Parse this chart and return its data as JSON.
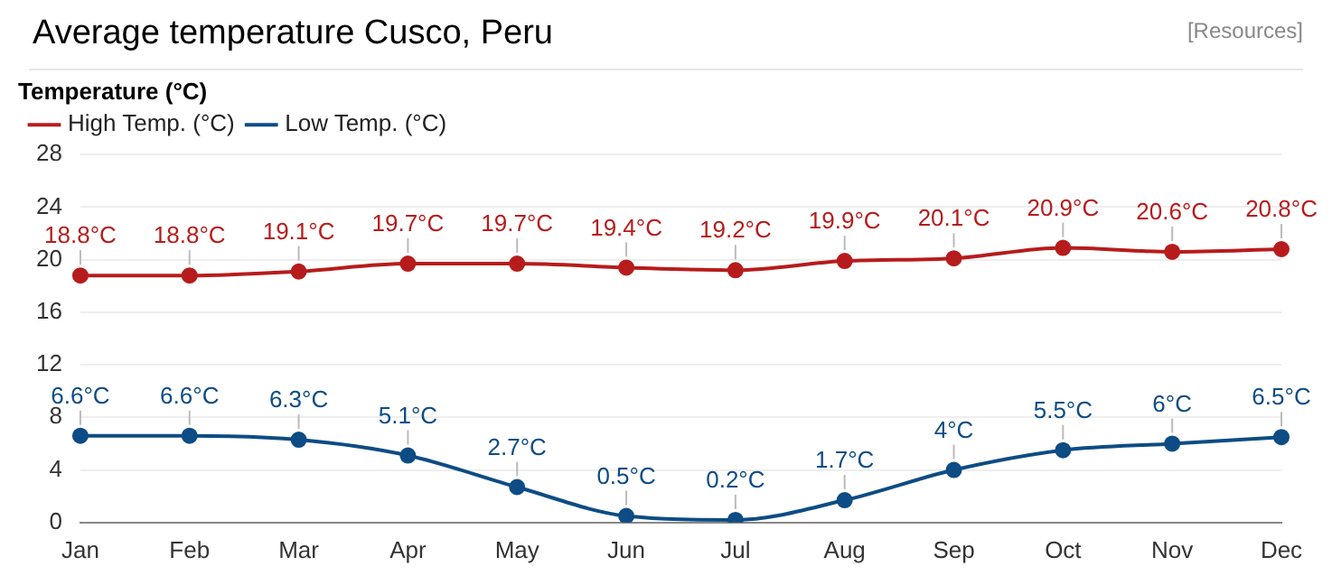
{
  "chart_data": {
    "type": "line",
    "title": "Average temperature Cusco, Peru",
    "annotations": [
      "[Resources]"
    ],
    "legend_title": "Temperature (°C)",
    "legend": "top left",
    "marker": "circle",
    "line_style": "solid",
    "grid": "y",
    "categories": [
      "Jan",
      "Feb",
      "Mar",
      "Apr",
      "May",
      "Jun",
      "Jul",
      "Aug",
      "Sep",
      "Oct",
      "Nov",
      "Dec"
    ],
    "ylim": [
      0,
      28
    ],
    "yticks": [
      0,
      4,
      8,
      12,
      16,
      20,
      24,
      28
    ],
    "series": [
      {
        "name": "High Temp. (°C)",
        "color": "#b71c1c",
        "values": [
          18.8,
          18.8,
          19.1,
          19.7,
          19.7,
          19.4,
          19.2,
          19.9,
          20.1,
          20.9,
          20.6,
          20.8
        ],
        "value_labels": [
          "18.8°C",
          "18.8°C",
          "19.1°C",
          "19.7°C",
          "19.7°C",
          "19.4°C",
          "19.2°C",
          "19.9°C",
          "20.1°C",
          "20.9°C",
          "20.6°C",
          "20.8°C"
        ]
      },
      {
        "name": "Low Temp. (°C)",
        "color": "#0d4c84",
        "values": [
          6.6,
          6.6,
          6.3,
          5.1,
          2.7,
          0.5,
          0.2,
          1.7,
          4,
          5.5,
          6,
          6.5
        ],
        "value_labels": [
          "6.6°C",
          "6.6°C",
          "6.3°C",
          "5.1°C",
          "2.7°C",
          "0.5°C",
          "0.2°C",
          "1.7°C",
          "4°C",
          "5.5°C",
          "6°C",
          "6.5°C"
        ]
      }
    ]
  }
}
